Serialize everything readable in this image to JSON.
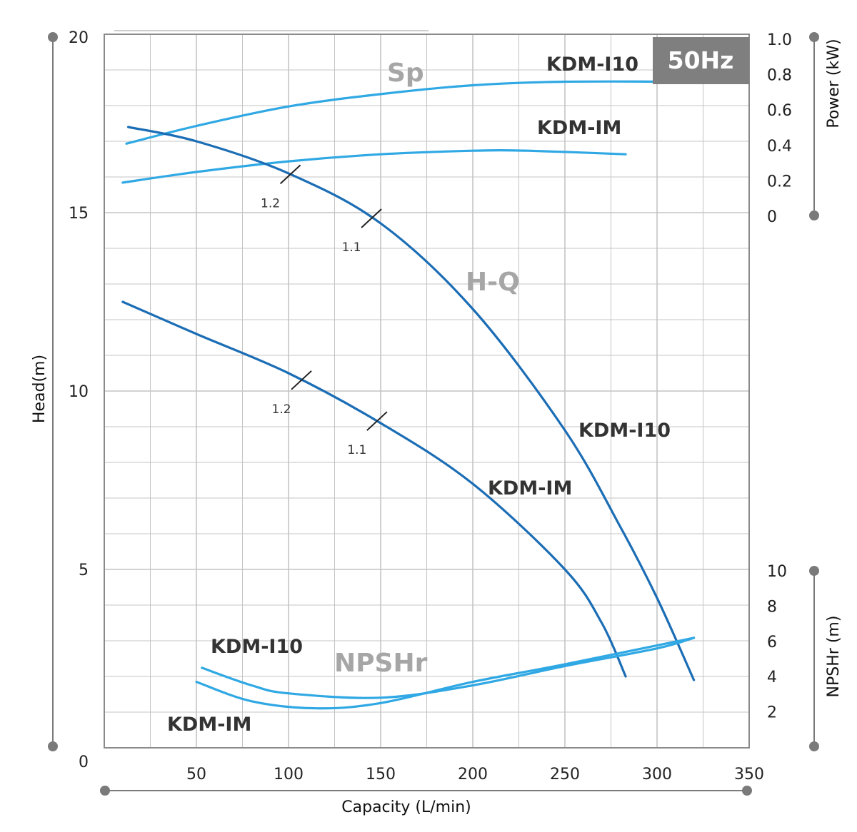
{
  "chart_data": {
    "type": "line",
    "badge": "50Hz",
    "xlabel": "Capacity (L/min)",
    "x_ticks": [
      "50",
      "100",
      "150",
      "200",
      "250",
      "300",
      "350"
    ],
    "xlim": [
      0,
      350
    ],
    "grid": true,
    "axes": {
      "head": {
        "label": "Head(m)",
        "lim": [
          0,
          20
        ],
        "ticks": [
          "0",
          "5",
          "10",
          "15",
          "20"
        ]
      },
      "power": {
        "label": "Power (kW)",
        "lim": [
          0,
          1.0
        ],
        "ticks": [
          "0",
          "0.2",
          "0.4",
          "0.6",
          "0.8",
          "1.0"
        ]
      },
      "npshr": {
        "label": "NPSHr (m)",
        "lim": [
          0,
          10
        ],
        "ticks": [
          "2",
          "4",
          "6",
          "8",
          "10"
        ]
      }
    },
    "groups": [
      {
        "id": "sp",
        "label": "Sp",
        "axis": "power"
      },
      {
        "id": "hq",
        "label": "H-Q",
        "axis": "head"
      },
      {
        "id": "npshr",
        "label": "NPSHr",
        "axis": "npshr"
      }
    ],
    "series": [
      {
        "name": "KDM-I10",
        "group": "sp",
        "color": "#2fa8e4",
        "points": [
          [
            12,
            0.41
          ],
          [
            50,
            0.51
          ],
          [
            100,
            0.62
          ],
          [
            150,
            0.69
          ],
          [
            200,
            0.74
          ],
          [
            250,
            0.76
          ],
          [
            320,
            0.76
          ]
        ]
      },
      {
        "name": "KDM-IM",
        "group": "sp",
        "color": "#2fa8e4",
        "points": [
          [
            10,
            0.19
          ],
          [
            50,
            0.25
          ],
          [
            100,
            0.31
          ],
          [
            150,
            0.35
          ],
          [
            200,
            0.37
          ],
          [
            230,
            0.37
          ],
          [
            283,
            0.35
          ]
        ]
      },
      {
        "name": "KDM-I10",
        "group": "hq",
        "color": "#1b6db5",
        "points": [
          [
            13,
            17.4
          ],
          [
            50,
            17.0
          ],
          [
            100,
            16.1
          ],
          [
            150,
            14.7
          ],
          [
            200,
            12.3
          ],
          [
            250,
            8.9
          ],
          [
            280,
            6.2
          ],
          [
            300,
            4.2
          ],
          [
            320,
            1.9
          ]
        ]
      },
      {
        "name": "KDM-IM",
        "group": "hq",
        "color": "#1b6db5",
        "points": [
          [
            10,
            12.5
          ],
          [
            50,
            11.6
          ],
          [
            100,
            10.5
          ],
          [
            150,
            9.1
          ],
          [
            200,
            7.4
          ],
          [
            250,
            5.0
          ],
          [
            270,
            3.5
          ],
          [
            283,
            2.0
          ]
        ]
      },
      {
        "name": "KDM-I10",
        "group": "npshr",
        "color": "#2fa8e4",
        "points": [
          [
            53,
            4.5
          ],
          [
            80,
            3.5
          ],
          [
            100,
            3.05
          ],
          [
            150,
            2.8
          ],
          [
            200,
            3.5
          ],
          [
            250,
            4.6
          ],
          [
            300,
            5.6
          ],
          [
            320,
            6.2
          ]
        ]
      },
      {
        "name": "KDM-IM",
        "group": "npshr",
        "color": "#2fa8e4",
        "points": [
          [
            50,
            3.7
          ],
          [
            80,
            2.6
          ],
          [
            115,
            2.2
          ],
          [
            150,
            2.5
          ],
          [
            200,
            3.7
          ],
          [
            250,
            4.7
          ],
          [
            320,
            6.2
          ]
        ]
      }
    ],
    "efficiency_marks": [
      {
        "label": "1.2",
        "curve": "KDM-I10",
        "x": 101
      },
      {
        "label": "1.1",
        "curve": "KDM-I10",
        "x": 145
      },
      {
        "label": "1.2",
        "curve": "KDM-IM",
        "x": 107
      },
      {
        "label": "1.1",
        "curve": "KDM-IM",
        "x": 148
      }
    ]
  }
}
